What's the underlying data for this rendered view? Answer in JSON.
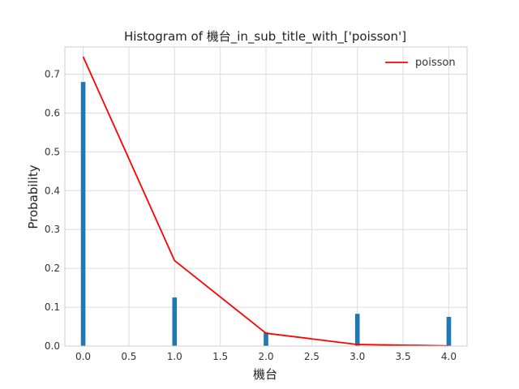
{
  "chart_data": {
    "type": "bar",
    "title": "Histogram of 機台_in_sub_title_with_['poisson']",
    "xlabel": "機台",
    "ylabel": "Probability",
    "xlim": [
      -0.2,
      4.2
    ],
    "ylim": [
      0,
      0.77
    ],
    "xticks": [
      0.0,
      0.5,
      1.0,
      1.5,
      2.0,
      2.5,
      3.0,
      3.5,
      4.0
    ],
    "xtick_labels": [
      "0.0",
      "0.5",
      "1.0",
      "1.5",
      "2.0",
      "2.5",
      "3.0",
      "3.5",
      "4.0"
    ],
    "yticks": [
      0.0,
      0.1,
      0.2,
      0.3,
      0.4,
      0.5,
      0.6,
      0.7
    ],
    "ytick_labels": [
      "0.0",
      "0.1",
      "0.2",
      "0.3",
      "0.4",
      "0.5",
      "0.6",
      "0.7"
    ],
    "grid": true,
    "legend_position": "top-right",
    "bars": {
      "x": [
        0,
        1,
        2,
        3,
        4
      ],
      "values": [
        0.68,
        0.125,
        0.035,
        0.083,
        0.075
      ],
      "bar_width": 0.05,
      "color": "#1f77b4"
    },
    "series": [
      {
        "name": "poisson",
        "type": "line",
        "color": "#ff0000",
        "x": [
          0,
          1,
          2,
          3,
          4
        ],
        "y": [
          0.745,
          0.22,
          0.033,
          0.004,
          0.0005
        ]
      }
    ]
  }
}
